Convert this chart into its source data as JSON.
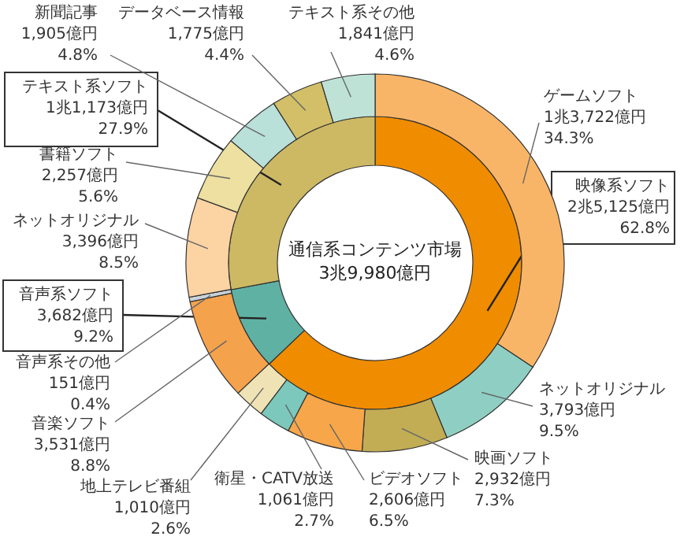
{
  "chart_data": [
    {
      "type": "donut",
      "title": "通信系コンテンツ市場",
      "subtitle": "3兆9,980億円",
      "categories": [
        "映像系ソフト",
        "音声系ソフト",
        "テキスト系ソフト"
      ],
      "values": [
        62.8,
        9.2,
        27.9
      ],
      "colors": [
        "#f08c00",
        "#5fb1a3",
        "#cdb964"
      ],
      "value_labels": [
        "2兆5,125億円\n62.8%",
        "3,682億円\n9.2%",
        "1兆1,173億円\n27.9%"
      ]
    },
    {
      "type": "donut",
      "categories": [
        "ゲームソフト",
        "ネットオリジナル",
        "映画ソフト",
        "ビデオソフト",
        "衛星・CATV放送",
        "地上テレビ番組",
        "音楽ソフト",
        "音声系その他",
        "ネットオリジナル",
        "書籍ソフト",
        "新聞記事",
        "データベース情報",
        "テキスト系その他"
      ],
      "values": [
        34.3,
        9.5,
        7.3,
        6.5,
        2.7,
        2.6,
        8.8,
        0.4,
        8.5,
        5.6,
        4.8,
        4.4,
        4.6
      ],
      "colors": [
        "#f9b567",
        "#8fcfc3",
        "#c2ad55",
        "#f7a64a",
        "#7cc8bc",
        "#efe3b5",
        "#f5a24c",
        "#c9d3d8",
        "#fcd3a2",
        "#ede0a0",
        "#b9e0d9",
        "#d2bf68",
        "#bfe2d6"
      ],
      "value_labels": [
        "1兆3,722億円\n34.3%",
        "3,793億円\n9.5%",
        "2,932億円\n7.3%",
        "2,606億円\n6.5%",
        "1,061億円\n2.7%",
        "1,010億円\n2.6%",
        "3,531億円\n8.8%",
        "151億円\n0.4%",
        "3,396億円\n8.5%",
        "2,257億円\n5.6%",
        "1,905億円\n4.8%",
        "1,775億円\n4.4%",
        "1,841億円\n4.6%"
      ]
    }
  ]
}
